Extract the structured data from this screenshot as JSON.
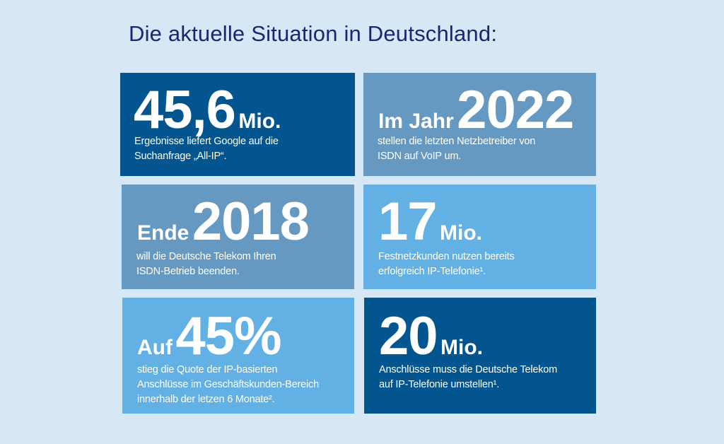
{
  "title": "Die aktuelle Situation in Deutschland:",
  "colors": {
    "background": "#d6e7f5",
    "title": "#1b2672",
    "dark_blue": "#03558f",
    "mid_blue": "#6699c1",
    "light_blue": "#63b0e4"
  },
  "cards": [
    {
      "prefix": "",
      "number": "45,6",
      "suffix": "Mio.",
      "lines": [
        "Ergebnisse liefert Google auf die",
        "Suchanfrage „All-IP“."
      ]
    },
    {
      "prefix": "Im Jahr",
      "number": "2022",
      "suffix": "",
      "lines": [
        "stellen die letzten Netzbetreiber von",
        "ISDN auf VoIP um."
      ]
    },
    {
      "prefix": "Ende",
      "number": "2018",
      "suffix": "",
      "lines": [
        "will die Deutsche Telekom Ihren",
        "ISDN-Betrieb beenden."
      ]
    },
    {
      "prefix": "",
      "number": "17",
      "suffix": "Mio.",
      "lines": [
        "Festnetzkunden nutzen bereits",
        "erfolgreich IP-Telefonie¹."
      ]
    },
    {
      "prefix": "Auf",
      "number": "45%",
      "suffix": "",
      "lines": [
        "stieg die Quote der IP-basierten",
        "Anschlüsse im Geschäftskunden-Bereich",
        "innerhalb der letzen 6 Monate²."
      ]
    },
    {
      "prefix": "",
      "number": "20",
      "suffix": "Mio.",
      "lines": [
        "Anschlüsse muss die Deutsche Telekom",
        "auf IP-Telefonie umstellen¹."
      ]
    }
  ]
}
